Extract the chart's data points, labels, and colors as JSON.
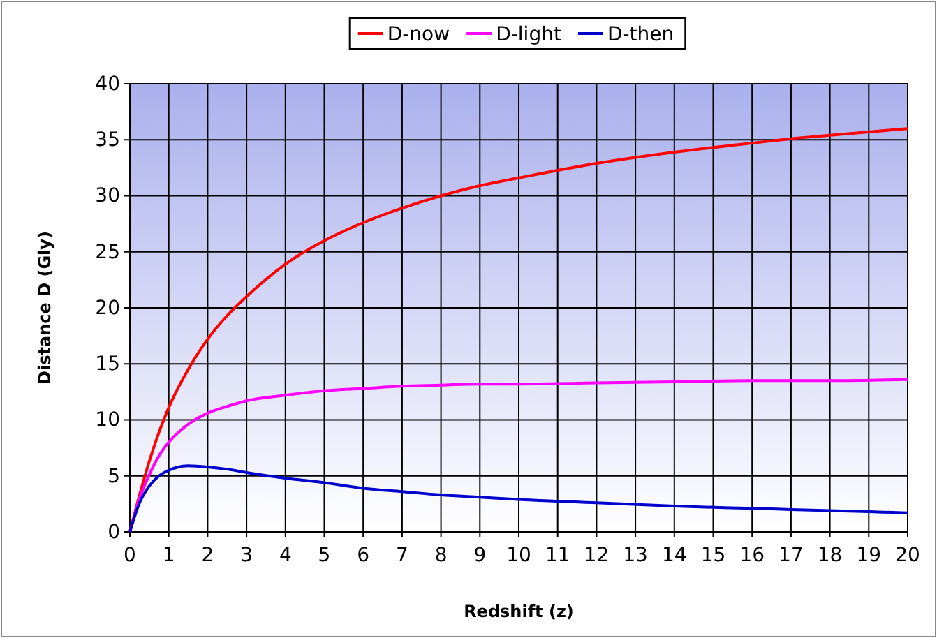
{
  "chart_data": {
    "type": "line",
    "xlabel": "Redshift (z)",
    "ylabel": "Distance D (Gly)",
    "xlim": [
      0,
      20
    ],
    "xticks": [
      0,
      1,
      2,
      3,
      4,
      5,
      6,
      7,
      8,
      9,
      10,
      11,
      12,
      13,
      14,
      15,
      16,
      17,
      18,
      19,
      20
    ],
    "ylim": [
      0,
      40
    ],
    "yticks": [
      0,
      5,
      10,
      15,
      20,
      25,
      30,
      35,
      40
    ],
    "grid": true,
    "legend": "top",
    "marker": "none",
    "line_style": "solid",
    "x": [
      0,
      0.25,
      0.5,
      0.75,
      1,
      1.5,
      2,
      2.5,
      3,
      4,
      5,
      6,
      7,
      8,
      9,
      10,
      12,
      14,
      16,
      17,
      18,
      20
    ],
    "series": [
      {
        "name": "D-now",
        "color": "#ff0000",
        "values": [
          0,
          3.3,
          6.3,
          8.9,
          11.1,
          14.5,
          17.2,
          19.3,
          21,
          23.9,
          26,
          27.6,
          28.9,
          30,
          30.9,
          31.6,
          32.9,
          33.9,
          34.7,
          35.1,
          35.4,
          36
        ]
      },
      {
        "name": "D-light",
        "color": "#ff00ff",
        "values": [
          0,
          3,
          5.1,
          6.8,
          8,
          9.6,
          10.6,
          11.2,
          11.7,
          12.2,
          12.6,
          12.8,
          13,
          13.1,
          13.2,
          13.2,
          13.3,
          13.4,
          13.5,
          13.5,
          13.5,
          13.6
        ]
      },
      {
        "name": "D-then",
        "color": "#0000cc",
        "values": [
          0,
          2.6,
          4.1,
          5,
          5.5,
          5.9,
          5.8,
          5.6,
          5.3,
          4.8,
          4.4,
          3.9,
          3.6,
          3.3,
          3.1,
          2.9,
          2.6,
          2.3,
          2.1,
          2,
          1.9,
          1.7
        ]
      }
    ]
  }
}
